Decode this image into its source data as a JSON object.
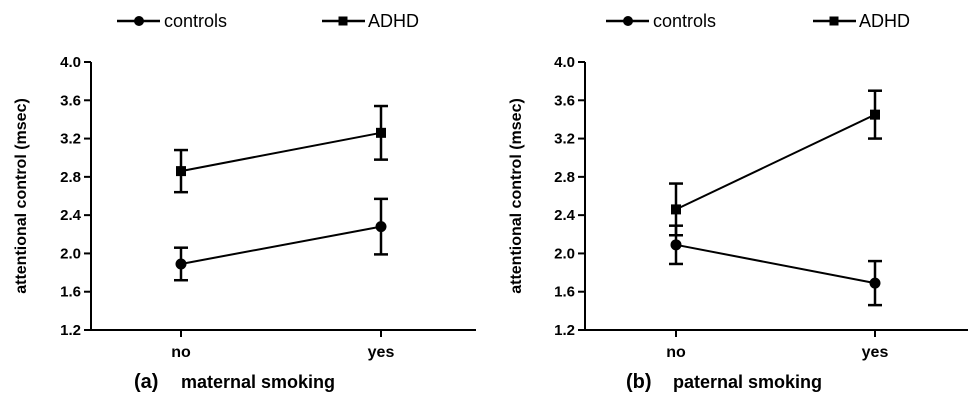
{
  "chart_data": [
    {
      "type": "line",
      "panel_label": "(a)",
      "xlabel": "maternal smoking",
      "ylabel": "attentional control (msec)",
      "categories": [
        "no",
        "yes"
      ],
      "ylim": [
        1.2,
        4.0
      ],
      "yticks": [
        "1.2",
        "1.6",
        "2.0",
        "2.4",
        "2.8",
        "3.2",
        "3.6",
        "4.0"
      ],
      "legend_position": "top",
      "series": [
        {
          "name": "controls",
          "marker": "circle",
          "values": [
            1.89,
            2.28
          ],
          "error": [
            0.17,
            0.29
          ]
        },
        {
          "name": "ADHD",
          "marker": "square",
          "values": [
            2.86,
            3.26
          ],
          "error": [
            0.22,
            0.28
          ]
        }
      ]
    },
    {
      "type": "line",
      "panel_label": "(b)",
      "xlabel": "paternal smoking",
      "ylabel": "attentional control (msec)",
      "categories": [
        "no",
        "yes"
      ],
      "ylim": [
        1.2,
        4.0
      ],
      "yticks": [
        "1.2",
        "1.6",
        "2.0",
        "2.4",
        "2.8",
        "3.2",
        "3.6",
        "4.0"
      ],
      "legend_position": "top",
      "series": [
        {
          "name": "controls",
          "marker": "circle",
          "values": [
            2.09,
            1.69
          ],
          "error": [
            0.2,
            0.23
          ]
        },
        {
          "name": "ADHD",
          "marker": "square",
          "values": [
            2.46,
            3.45
          ],
          "error": [
            0.27,
            0.25
          ]
        }
      ]
    }
  ]
}
